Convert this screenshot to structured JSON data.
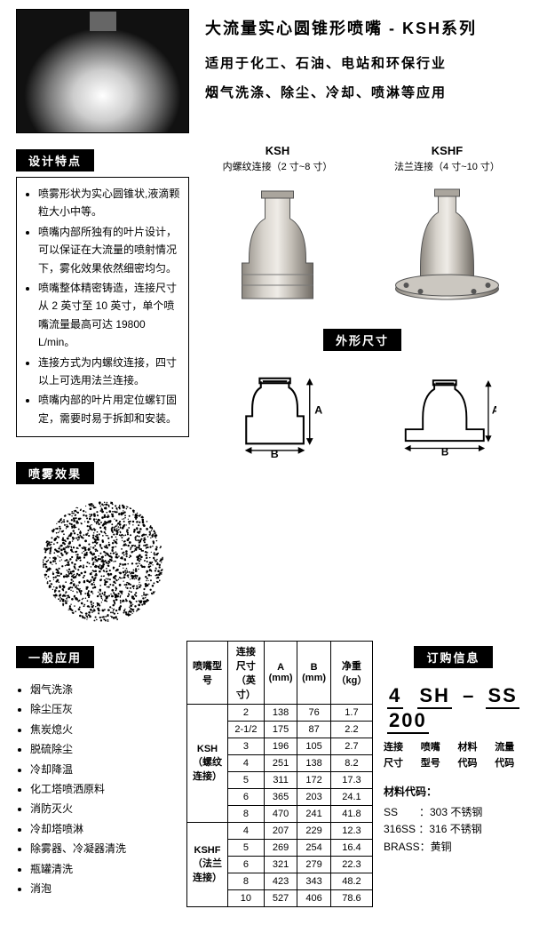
{
  "header": {
    "title": "大流量实心圆锥形喷嘴 - KSH系列",
    "sub1": "适用于化工、石油、电站和环保行业",
    "sub2": "烟气洗涤、除尘、冷却、喷淋等应用"
  },
  "sections": {
    "features": "设计特点",
    "spray": "喷雾效果",
    "applications": "一般应用",
    "dimensions": "外形尺寸",
    "order": "订购信息"
  },
  "models": {
    "ksh": {
      "name": "KSH",
      "sub": "内螺纹连接（2 寸~8 寸）"
    },
    "kshf": {
      "name": "KSHF",
      "sub": "法兰连接（4 寸~10 寸）"
    }
  },
  "features": [
    "喷雾形状为实心圆锥状,液滴颗粒大小中等。",
    "喷嘴内部所独有的叶片设计，可以保证在大流量的喷射情况下，雾化效果依然细密均匀。",
    "喷嘴整体精密铸造，连接尺寸从 2 英寸至 10 英寸，单个喷嘴流量最高可达 19800 L/min。",
    "连接方式为内螺纹连接，四寸以上可选用法兰连接。",
    "喷嘴内部的叶片用定位螺钉固定，需要时易于拆卸和安装。"
  ],
  "applications": [
    "烟气洗涤",
    "除尘压灰",
    "焦炭熄火",
    "脱硫除尘",
    "冷却降温",
    "化工塔喷洒原料",
    "消防灭火",
    "冷却塔喷淋",
    "除雾器、冷凝器清洗",
    "瓶罐清洗",
    "消泡"
  ],
  "specTable": {
    "headers": [
      "喷嘴型号",
      "连接尺寸（英寸）",
      "A (mm)",
      "B (mm)",
      "净重（kg）"
    ],
    "groups": [
      {
        "model": "KSH（螺纹连接）",
        "rows": [
          [
            "2",
            "138",
            "76",
            "1.7"
          ],
          [
            "2-1/2",
            "175",
            "87",
            "2.2"
          ],
          [
            "3",
            "196",
            "105",
            "2.7"
          ],
          [
            "4",
            "251",
            "138",
            "8.2"
          ],
          [
            "5",
            "311",
            "172",
            "17.3"
          ],
          [
            "6",
            "365",
            "203",
            "24.1"
          ],
          [
            "8",
            "470",
            "241",
            "41.8"
          ]
        ]
      },
      {
        "model": "KSHF（法兰连接）",
        "rows": [
          [
            "4",
            "207",
            "229",
            "12.3"
          ],
          [
            "5",
            "269",
            "254",
            "16.4"
          ],
          [
            "6",
            "321",
            "279",
            "22.3"
          ],
          [
            "8",
            "423",
            "343",
            "48.2"
          ],
          [
            "10",
            "527",
            "406",
            "78.6"
          ]
        ]
      }
    ]
  },
  "order": {
    "example": {
      "seg1": "4",
      "seg2": "SH",
      "dash": "–",
      "seg3": "SS",
      "seg4": "200"
    },
    "labels": {
      "c1a": "连接",
      "c1b": "尺寸",
      "c2a": "喷嘴",
      "c2b": "型号",
      "c3a": "材料",
      "c3b": "代码",
      "c4a": "流量",
      "c4b": "代码"
    },
    "materialsTitle": "材料代码：",
    "materials": [
      "SS　　：303 不锈钢",
      "316SS ：316 不锈钢",
      "BRASS：黄铜"
    ]
  },
  "colors": {
    "text": "#000000",
    "bg": "#ffffff",
    "heading_bg": "#000000",
    "heading_fg": "#ffffff",
    "table_border": "#000000",
    "nozzle_body": "#b8b4ae",
    "nozzle_edge": "#7a756e"
  }
}
